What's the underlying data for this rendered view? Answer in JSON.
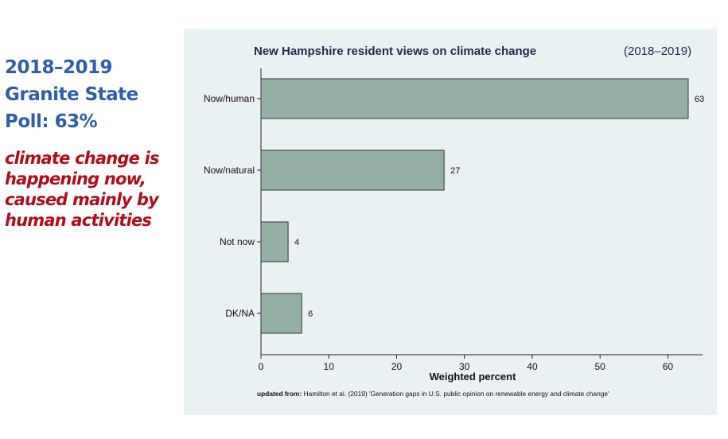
{
  "side": {
    "heading_lines": [
      "2018–2019",
      "Granite State",
      "Poll:   63%"
    ],
    "sub_lines": [
      "climate change is",
      "happening now,",
      "caused mainly by",
      "human activities"
    ]
  },
  "chart_data": {
    "type": "bar",
    "orientation": "horizontal",
    "title": "New Hampshire resident views on climate change",
    "subtitle": "(2018–2019)",
    "categories": [
      "Now/human",
      "Now/natural",
      "Not now",
      "DK/NA"
    ],
    "values": [
      63,
      27,
      4,
      6
    ],
    "data_labels": [
      "63",
      "27",
      "4",
      "6"
    ],
    "xlabel": "Weighted percent",
    "ylabel": "",
    "xlim": [
      0,
      65
    ],
    "xticks": [
      0,
      10,
      20,
      30,
      40,
      50,
      60
    ],
    "xtick_labels": [
      "0",
      "10",
      "20",
      "30",
      "40",
      "50",
      "60"
    ],
    "grid": false,
    "bar_color": "#94b0a5",
    "note_bold": "updated from:",
    "note": "Hamilton et al. (2019)  'Generation gaps in U.S. public opinion on renewable energy and climate change'"
  }
}
